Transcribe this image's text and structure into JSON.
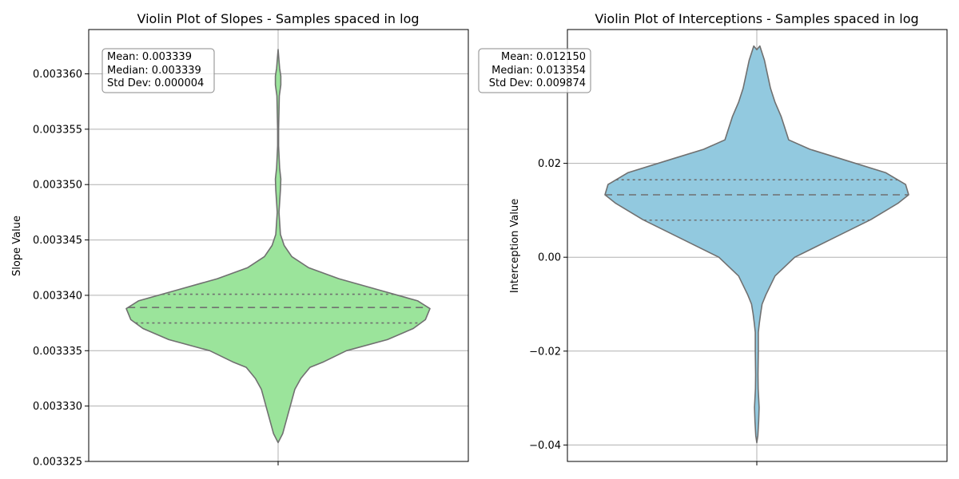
{
  "chart_data": [
    {
      "type": "violin",
      "title": "Violin Plot of Slopes - Samples spaced in log",
      "xlabel": "",
      "ylabel": "Slope Value",
      "ylim": [
        0.003325,
        0.003364
      ],
      "yticks": [
        0.003325,
        0.00333,
        0.003335,
        0.00334,
        0.003345,
        0.00335,
        0.003355,
        0.00336
      ],
      "ytick_labels": [
        "0.003325",
        "0.003330",
        "0.003335",
        "0.003340",
        "0.003345",
        "0.003350",
        "0.003355",
        "0.003360"
      ],
      "grid": true,
      "fill_color": "#9be49b",
      "edge_color": "#707070",
      "quartiles": {
        "q1": 0.0033375,
        "median": 0.0033389,
        "q3": 0.0033401
      },
      "density_profile": [
        [
          0.0033267,
          0.0
        ],
        [
          0.0033275,
          0.03
        ],
        [
          0.0033285,
          0.05
        ],
        [
          0.0033295,
          0.07
        ],
        [
          0.0033305,
          0.09
        ],
        [
          0.0033315,
          0.11
        ],
        [
          0.0033325,
          0.15
        ],
        [
          0.0033335,
          0.21
        ],
        [
          0.003334,
          0.3
        ],
        [
          0.003335,
          0.45
        ],
        [
          0.003336,
          0.72
        ],
        [
          0.003337,
          0.89
        ],
        [
          0.0033378,
          0.97
        ],
        [
          0.0033388,
          1.0
        ],
        [
          0.0033395,
          0.92
        ],
        [
          0.0033405,
          0.66
        ],
        [
          0.0033415,
          0.4
        ],
        [
          0.0033425,
          0.2
        ],
        [
          0.0033435,
          0.09
        ],
        [
          0.0033445,
          0.04
        ],
        [
          0.0033455,
          0.015
        ],
        [
          0.0033475,
          0.006
        ],
        [
          0.0033495,
          0.015
        ],
        [
          0.0033505,
          0.018
        ],
        [
          0.0033515,
          0.01
        ],
        [
          0.0033535,
          0.003
        ],
        [
          0.003355,
          0.003
        ],
        [
          0.003358,
          0.008
        ],
        [
          0.003359,
          0.018
        ],
        [
          0.0033598,
          0.018
        ],
        [
          0.0033605,
          0.01
        ],
        [
          0.0033622,
          0.0
        ]
      ],
      "stats_box": [
        "Mean: 0.003339",
        "Median: 0.003339",
        "Std Dev: 0.000004"
      ]
    },
    {
      "type": "violin",
      "title": "Violin Plot of Interceptions - Samples spaced in log",
      "xlabel": "",
      "ylabel": "Interception Value",
      "ylim": [
        -0.0435,
        0.0485
      ],
      "yticks": [
        -0.04,
        -0.02,
        0.0,
        0.02
      ],
      "ytick_labels": [
        "−0.04",
        "−0.02",
        "0.00",
        "0.02"
      ],
      "grid": true,
      "fill_color": "#92c9df",
      "edge_color": "#707070",
      "quartiles": {
        "q1": 0.0079,
        "median": 0.0133,
        "q3": 0.0165
      },
      "density_profile": [
        [
          -0.0395,
          0.0
        ],
        [
          -0.038,
          0.007
        ],
        [
          -0.035,
          0.012
        ],
        [
          -0.032,
          0.015
        ],
        [
          -0.03,
          0.012
        ],
        [
          -0.028,
          0.009
        ],
        [
          -0.025,
          0.008
        ],
        [
          -0.02,
          0.01
        ],
        [
          -0.016,
          0.01
        ],
        [
          -0.014,
          0.017
        ],
        [
          -0.012,
          0.025
        ],
        [
          -0.01,
          0.035
        ],
        [
          -0.008,
          0.06
        ],
        [
          -0.004,
          0.12
        ],
        [
          0.0,
          0.25
        ],
        [
          0.004,
          0.5
        ],
        [
          0.008,
          0.75
        ],
        [
          0.0115,
          0.93
        ],
        [
          0.0133,
          1.0
        ],
        [
          0.0155,
          0.98
        ],
        [
          0.018,
          0.85
        ],
        [
          0.021,
          0.55
        ],
        [
          0.023,
          0.35
        ],
        [
          0.025,
          0.21
        ],
        [
          0.027,
          0.19
        ],
        [
          0.03,
          0.16
        ],
        [
          0.033,
          0.12
        ],
        [
          0.036,
          0.09
        ],
        [
          0.039,
          0.07
        ],
        [
          0.042,
          0.05
        ],
        [
          0.045,
          0.02
        ],
        [
          0.0442,
          0.0
        ]
      ],
      "stats_box": [
        "Mean: 0.012150",
        "Median: 0.013354",
        "Std Dev: 0.009874"
      ]
    }
  ]
}
